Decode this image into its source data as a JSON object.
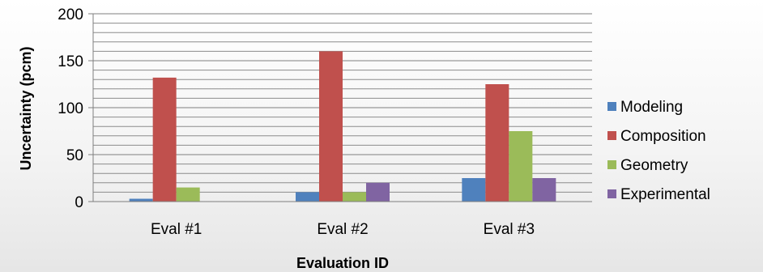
{
  "chart_data": {
    "type": "bar",
    "title": "",
    "xlabel": "Evaluation ID",
    "ylabel": "Uncertainty (pcm)",
    "categories": [
      "Eval #1",
      "Eval #2",
      "Eval #3"
    ],
    "series": [
      {
        "name": "Modeling",
        "values": [
          3,
          10,
          25
        ],
        "color": "#4f81bd"
      },
      {
        "name": "Composition",
        "values": [
          132,
          160,
          125
        ],
        "color": "#c0504d"
      },
      {
        "name": "Geometry",
        "values": [
          15,
          10,
          75
        ],
        "color": "#9bbb59"
      },
      {
        "name": "Experimental",
        "values": [
          0,
          20,
          25
        ],
        "color": "#8064a2"
      }
    ],
    "ylim": [
      0,
      200
    ],
    "yticks": [
      0,
      50,
      100,
      150,
      200
    ],
    "ytick_labels": [
      "0",
      "50",
      "100",
      "150",
      "200"
    ],
    "grid": true,
    "legend": "right"
  }
}
